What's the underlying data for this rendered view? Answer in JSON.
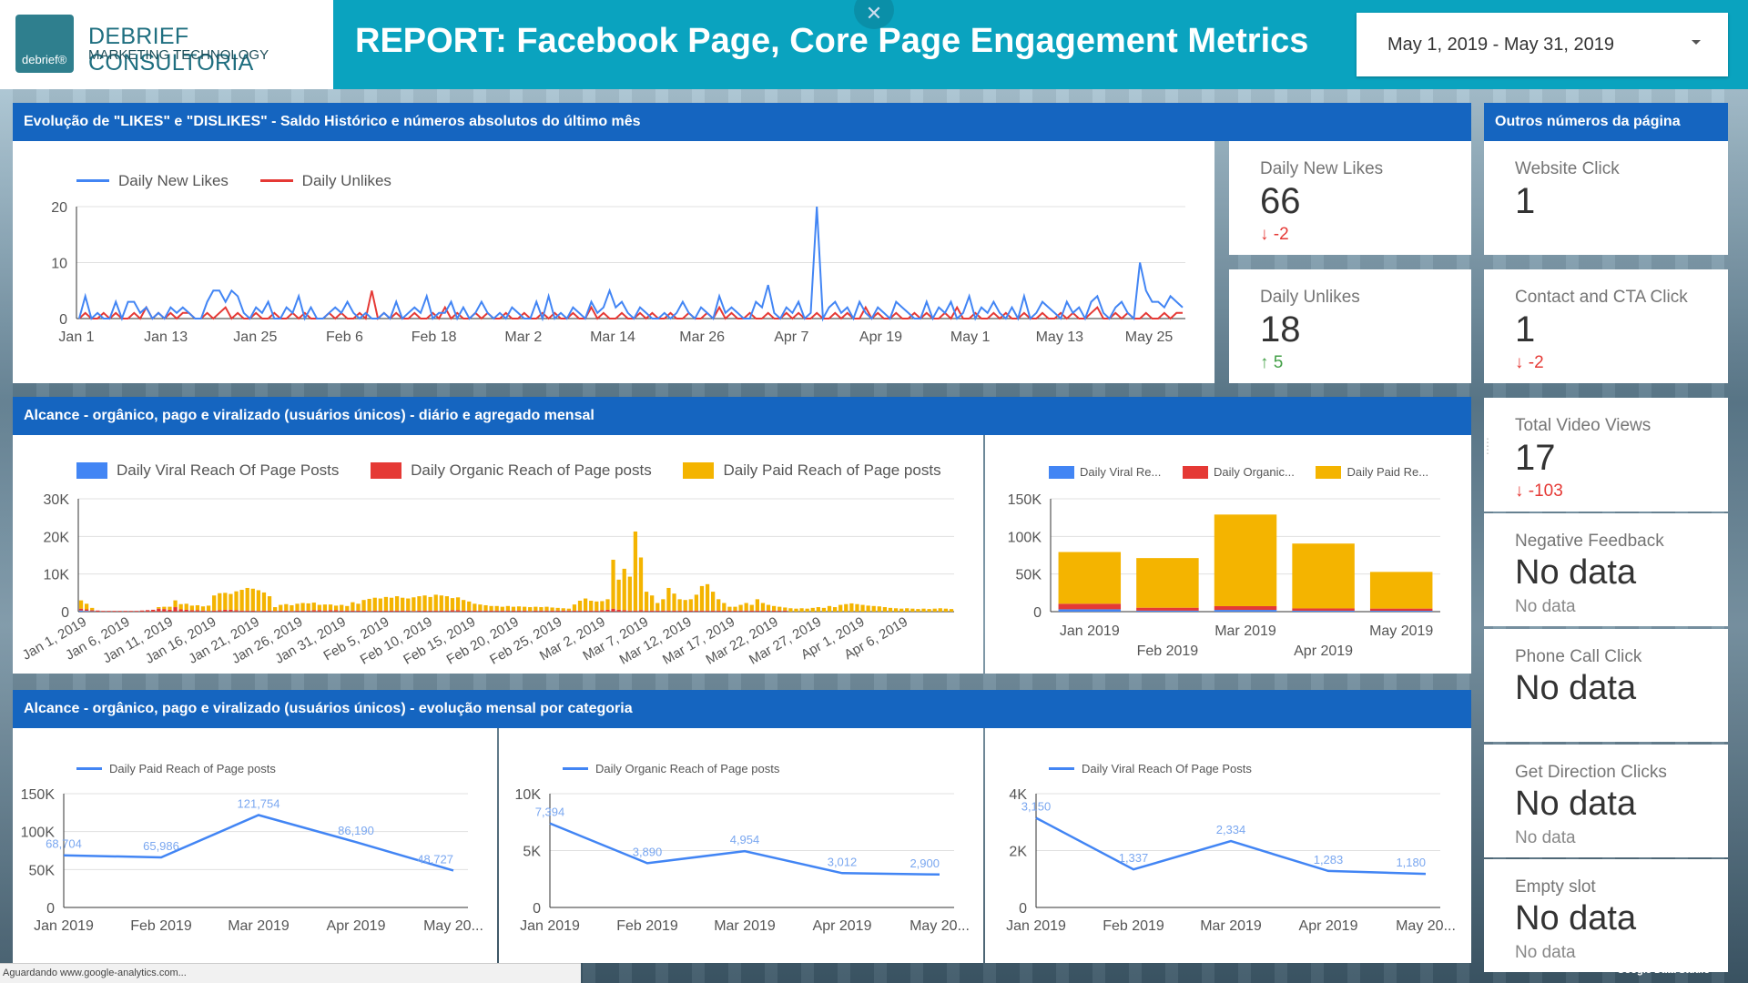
{
  "header": {
    "logo_name": "DEBRIEF CONSULTORIA",
    "logo_sub": "MARKETING TECHNOLOGY",
    "logo_mark": "debrief®",
    "title": "REPORT: Facebook Page, Core Page Engagement Metrics",
    "close_icon": "close-icon",
    "date_range": "May 1, 2019 - May 31, 2019"
  },
  "sections": {
    "likes": "Evolução de \"LIKES\" e \"DISLIKES\" - Saldo Histórico e números absolutos do último mês",
    "others": "Outros números da página",
    "reach": "Alcance - orgânico, pago e viralizado (usuários únicos) - diário e agregado  mensal",
    "reach_cat": "Alcance - orgânico, pago e viralizado (usuários únicos) - evolução mensal por categoria"
  },
  "kpis": {
    "new_likes": {
      "label": "Daily New Likes",
      "value": "66",
      "delta": "-2"
    },
    "unlikes": {
      "label": "Daily Unlikes",
      "value": "18",
      "delta": "5"
    },
    "website_click": {
      "label": "Website Click",
      "value": "1"
    },
    "contact_cta": {
      "label": "Contact and CTA Click",
      "value": "1",
      "delta": "-2"
    },
    "video_views": {
      "label": "Total Video Views",
      "value": "17",
      "delta": "-103"
    },
    "neg_feedback": {
      "label": "Negative Feedback",
      "value": "No data",
      "delta": "No data"
    },
    "phone_call": {
      "label": "Phone Call Click",
      "value": "No data"
    },
    "directions": {
      "label": "Get Direction Clicks",
      "value": "No data",
      "delta": "No data"
    },
    "empty_slot": {
      "label": "Empty slot",
      "value": "No data",
      "delta": "No data"
    }
  },
  "colors": {
    "blue": "#4285f4",
    "red": "#e53935",
    "yellow": "#f4b400",
    "header": "#0aa3bf",
    "section": "#1565c0"
  },
  "status": {
    "loading": "Aguardando www.google-analytics.com...",
    "brand": "Google Data Studio"
  },
  "chart_data": [
    {
      "id": "likes",
      "type": "line",
      "series": [
        {
          "name": "Daily New Likes",
          "color": "#4285f4",
          "values": [
            0,
            4,
            0,
            1,
            0,
            0,
            3,
            0,
            3,
            3,
            1,
            2,
            0,
            1,
            0,
            2,
            1,
            2,
            1,
            0,
            0,
            3,
            5,
            5,
            3,
            5,
            4,
            1,
            0,
            2,
            1,
            3,
            0,
            0,
            2,
            1,
            4,
            0,
            2,
            0,
            0,
            1,
            2,
            1,
            3,
            1,
            0,
            1,
            0,
            0,
            1,
            0,
            3,
            0,
            1,
            2,
            1,
            4,
            0,
            1,
            1,
            3,
            0,
            2,
            0,
            1,
            3,
            1,
            0,
            1,
            0,
            2,
            1,
            0,
            0,
            3,
            0,
            4,
            0,
            1,
            0,
            2,
            1,
            0,
            3,
            1,
            2,
            5,
            2,
            3,
            1,
            0,
            2,
            1,
            0,
            0,
            1,
            0,
            1,
            3,
            1,
            0,
            2,
            1,
            0,
            4,
            1,
            2,
            1,
            0,
            0,
            3,
            2,
            6,
            1,
            0,
            2,
            1,
            3,
            0,
            1,
            20,
            0,
            2,
            3,
            1,
            2,
            0,
            3,
            1,
            0,
            2,
            1,
            0,
            3,
            2,
            1,
            0,
            0,
            3,
            0,
            2,
            1,
            3,
            0,
            1,
            4,
            0,
            2,
            1,
            3,
            1,
            0,
            2,
            0,
            4,
            0,
            1,
            3,
            2,
            1,
            0,
            3,
            1,
            2,
            0,
            3,
            4,
            1,
            0,
            2,
            3,
            1,
            0,
            10,
            5,
            3,
            3,
            2,
            4,
            3,
            2
          ]
        },
        {
          "name": "Daily Unlikes",
          "color": "#e53935",
          "values": [
            0,
            1,
            0,
            0,
            1,
            0,
            1,
            0,
            0,
            1,
            0,
            2,
            0,
            1,
            0,
            1,
            0,
            1,
            1,
            0,
            0,
            1,
            0,
            1,
            2,
            0,
            1,
            0,
            0,
            1,
            0,
            0,
            1,
            0,
            0,
            1,
            0,
            1,
            0,
            0,
            0,
            1,
            0,
            1,
            0,
            0,
            1,
            0,
            5,
            0,
            1,
            0,
            1,
            0,
            0,
            1,
            0,
            0,
            1,
            0,
            2,
            0,
            1,
            0,
            0,
            1,
            0,
            1,
            0,
            0,
            1,
            0,
            0,
            1,
            0,
            0,
            1,
            0,
            1,
            0,
            0,
            1,
            0,
            0,
            2,
            0,
            1,
            0,
            0,
            1,
            0,
            0,
            1,
            0,
            1,
            0,
            0,
            1,
            0,
            0,
            1,
            0,
            0,
            1,
            0,
            2,
            0,
            1,
            0,
            0,
            1,
            0,
            0,
            1,
            0,
            0,
            1,
            0,
            1,
            0,
            0,
            1,
            0,
            0,
            1,
            0,
            1,
            0,
            0,
            2,
            0,
            1,
            0,
            0,
            1,
            0,
            0,
            1,
            0,
            1,
            0,
            0,
            1,
            0,
            2,
            0,
            0,
            1,
            0,
            0,
            1,
            0,
            1,
            0,
            0,
            1,
            0,
            0,
            1,
            0,
            0,
            1,
            0,
            1,
            0,
            0,
            1,
            2,
            0,
            0,
            1,
            0,
            1,
            0,
            0,
            1,
            0,
            0,
            1,
            0,
            1,
            1
          ]
        }
      ],
      "x_ticks": [
        "Jan 1",
        "Jan 13",
        "Jan 25",
        "Feb 6",
        "Feb 18",
        "Mar 2",
        "Mar 14",
        "Mar 26",
        "Apr 7",
        "Apr 19",
        "May 1",
        "May 13",
        "May 25"
      ],
      "y_ticks": [
        "0",
        "10",
        "20"
      ],
      "ylim": [
        0,
        20
      ]
    },
    {
      "id": "reach_daily",
      "type": "bar",
      "stacked": true,
      "legend": [
        "Daily Viral Reach Of Page Posts",
        "Daily Organic Reach of Page posts",
        "Daily Paid Reach of Page posts"
      ],
      "x_ticks": [
        "Jan 1, 2019",
        "Jan 6, 2019",
        "Jan 11, 2019",
        "Jan 16, 2019",
        "Jan 21, 2019",
        "Jan 26, 2019",
        "Jan 31, 2019",
        "Feb 5, 2019",
        "Feb 10, 2019",
        "Feb 15, 2019",
        "Feb 20, 2019",
        "Feb 25, 2019",
        "Mar 2, 2019",
        "Mar 7, 2019",
        "Mar 12, 2019",
        "Mar 17, 2019",
        "Mar 22, 2019",
        "Mar 27, 2019",
        "Apr 1, 2019",
        "Apr 6, 2019"
      ],
      "y_ticks": [
        "0",
        "10K",
        "20K",
        "30K"
      ],
      "ylim": [
        0,
        30000
      ],
      "series": [
        {
          "name": "Daily Viral Reach Of Page Posts",
          "color": "#4285f4",
          "values": [
            300,
            200,
            100,
            0,
            0,
            0,
            0,
            0,
            0,
            0,
            0,
            0,
            0,
            0,
            0,
            0,
            0,
            0,
            0,
            0,
            0,
            0,
            0,
            0,
            0,
            0,
            0,
            0,
            0,
            0,
            0,
            0,
            0,
            0,
            0,
            0,
            0,
            0,
            0,
            0,
            0,
            0,
            0,
            0,
            0,
            0,
            0,
            0,
            0,
            0,
            0,
            0,
            0,
            0,
            0,
            0,
            0,
            0,
            0,
            0,
            0,
            0,
            0,
            0,
            0,
            0,
            0,
            0,
            0,
            0,
            0,
            0,
            0,
            0,
            0,
            0,
            0,
            0,
            0,
            0,
            0,
            0,
            0,
            0,
            0,
            0,
            0,
            0,
            0,
            0,
            0,
            0,
            0,
            0,
            0,
            0,
            0,
            0,
            0,
            0,
            0,
            0,
            0,
            0,
            0,
            0,
            0,
            0,
            0,
            0,
            0,
            0,
            0,
            0,
            0,
            0,
            0,
            0,
            0,
            0,
            0,
            0,
            0,
            0,
            0,
            0,
            0,
            0
          ]
        },
        {
          "name": "Daily Organic Reach of Page posts",
          "color": "#e53935",
          "values": [
            500,
            400,
            300,
            300,
            200,
            200,
            200,
            200,
            200,
            200,
            200,
            300,
            400,
            500,
            800,
            700,
            500,
            1200,
            600,
            500,
            400,
            400,
            300,
            200,
            300,
            400,
            500,
            500,
            400,
            300,
            300,
            300,
            200,
            300,
            300,
            200,
            300,
            300,
            200,
            300,
            300,
            300,
            400,
            400,
            300,
            400,
            400,
            300,
            300,
            300,
            300,
            300,
            200,
            300,
            300,
            300,
            300,
            300,
            300,
            300,
            200,
            300,
            300,
            300,
            300,
            300,
            300,
            400,
            400,
            300,
            300,
            300,
            300,
            300,
            300,
            300,
            300,
            300,
            300,
            300,
            300,
            200,
            300,
            300,
            300,
            300,
            300,
            300,
            300,
            300,
            300,
            300,
            300,
            300,
            400,
            500,
            800,
            500,
            400,
            300,
            300,
            400,
            300,
            300,
            300,
            300,
            300,
            300,
            300,
            300,
            300,
            300,
            300,
            300,
            300,
            300,
            300,
            300,
            300,
            300,
            300,
            300,
            300,
            300,
            300,
            300,
            300,
            300
          ]
        },
        {
          "name": "Daily Paid Reach of Page posts",
          "color": "#f4b400",
          "values": [
            2200,
            1500,
            600,
            0,
            0,
            0,
            0,
            0,
            0,
            0,
            0,
            0,
            0,
            0,
            400,
            600,
            800,
            1800,
            1400,
            1600,
            1200,
            1300,
            1100,
            1400,
            4000,
            4500,
            4500,
            4200,
            5000,
            5500,
            6000,
            5800,
            5500,
            4800,
            3800,
            1000,
            1500,
            1700,
            1500,
            1800,
            2000,
            1900,
            2000,
            1400,
            1600,
            1500,
            1200,
            1500,
            1200,
            2200,
            1800,
            2800,
            3200,
            3400,
            3200,
            3600,
            3400,
            3800,
            3400,
            3200,
            3600,
            3800,
            4000,
            3600,
            4200,
            4000,
            3800,
            3200,
            3400,
            2800,
            2400,
            1800,
            1600,
            1400,
            1200,
            1200,
            1000,
            1200,
            1000,
            1100,
            1000,
            1000,
            1000,
            900,
            1000,
            800,
            700,
            600,
            500,
            1600,
            2600,
            3200,
            2600,
            2400,
            2400,
            2800,
            13000,
            8000,
            11000,
            9000,
            21000,
            14000,
            5000,
            4000,
            2000,
            3000,
            6000,
            4500,
            3000,
            2800,
            3000,
            4200,
            6500,
            7000,
            5000,
            3000,
            2000,
            1000,
            1000,
            1500,
            2000,
            1500,
            3000,
            2000,
            1500,
            1200,
            1000,
            800,
            900,
            800,
            900,
            800,
            1000,
            1200,
            1000,
            1500,
            1200,
            1800,
            2000,
            2200,
            2000,
            1800,
            1600,
            1500,
            1400,
            1200,
            1000,
            900,
            800,
            900,
            800,
            700,
            800,
            700,
            800,
            900,
            800,
            700
          ]
        }
      ]
    },
    {
      "id": "reach_monthly",
      "type": "bar",
      "stacked": true,
      "legend": [
        "Daily Viral Re...",
        "Daily Organic...",
        "Daily Paid Re..."
      ],
      "categories": [
        "Jan 2019",
        "Feb 2019",
        "Mar 2019",
        "Apr 2019",
        "May 2019"
      ],
      "y_ticks": [
        "0",
        "50K",
        "100K",
        "150K"
      ],
      "ylim": [
        0,
        150000
      ],
      "series": [
        {
          "name": "Daily Viral Reach Of Page Posts",
          "color": "#4285f4",
          "values": [
            3150,
            1337,
            2334,
            1283,
            1180
          ]
        },
        {
          "name": "Daily Organic Reach of Page posts",
          "color": "#e53935",
          "values": [
            7394,
            3890,
            4954,
            3012,
            2900
          ]
        },
        {
          "name": "Daily Paid Reach of Page posts",
          "color": "#f4b400",
          "values": [
            68704,
            65986,
            121754,
            86190,
            48727
          ]
        }
      ]
    },
    {
      "id": "paid_monthly",
      "type": "line",
      "legend": "Daily Paid Reach of Page posts",
      "categories": [
        "Jan 2019",
        "Feb 2019",
        "Mar 2019",
        "Apr 2019",
        "May 20..."
      ],
      "values": [
        68704,
        65986,
        121754,
        86190,
        48727
      ],
      "labels": [
        "68,704",
        "65,986",
        "121,754",
        "86,190",
        "48,727"
      ],
      "y_ticks": [
        "0",
        "50K",
        "100K",
        "150K"
      ],
      "ylim": [
        0,
        150000
      ]
    },
    {
      "id": "organic_monthly",
      "type": "line",
      "legend": "Daily Organic Reach of Page posts",
      "categories": [
        "Jan 2019",
        "Feb 2019",
        "Mar 2019",
        "Apr 2019",
        "May 20..."
      ],
      "values": [
        7394,
        3890,
        4954,
        3012,
        2900
      ],
      "labels": [
        "7,394",
        "3,890",
        "4,954",
        "3,012",
        "2,900"
      ],
      "y_ticks": [
        "0",
        "5K",
        "10K"
      ],
      "ylim": [
        0,
        10000
      ]
    },
    {
      "id": "viral_monthly",
      "type": "line",
      "legend": "Daily Viral Reach Of Page Posts",
      "categories": [
        "Jan 2019",
        "Feb 2019",
        "Mar 2019",
        "Apr 2019",
        "May 20..."
      ],
      "values": [
        3150,
        1337,
        2334,
        1283,
        1180
      ],
      "labels": [
        "3,150",
        "1,337",
        "2,334",
        "1,283",
        "1,180"
      ],
      "y_ticks": [
        "0",
        "2K",
        "4K"
      ],
      "ylim": [
        0,
        4000
      ]
    }
  ]
}
